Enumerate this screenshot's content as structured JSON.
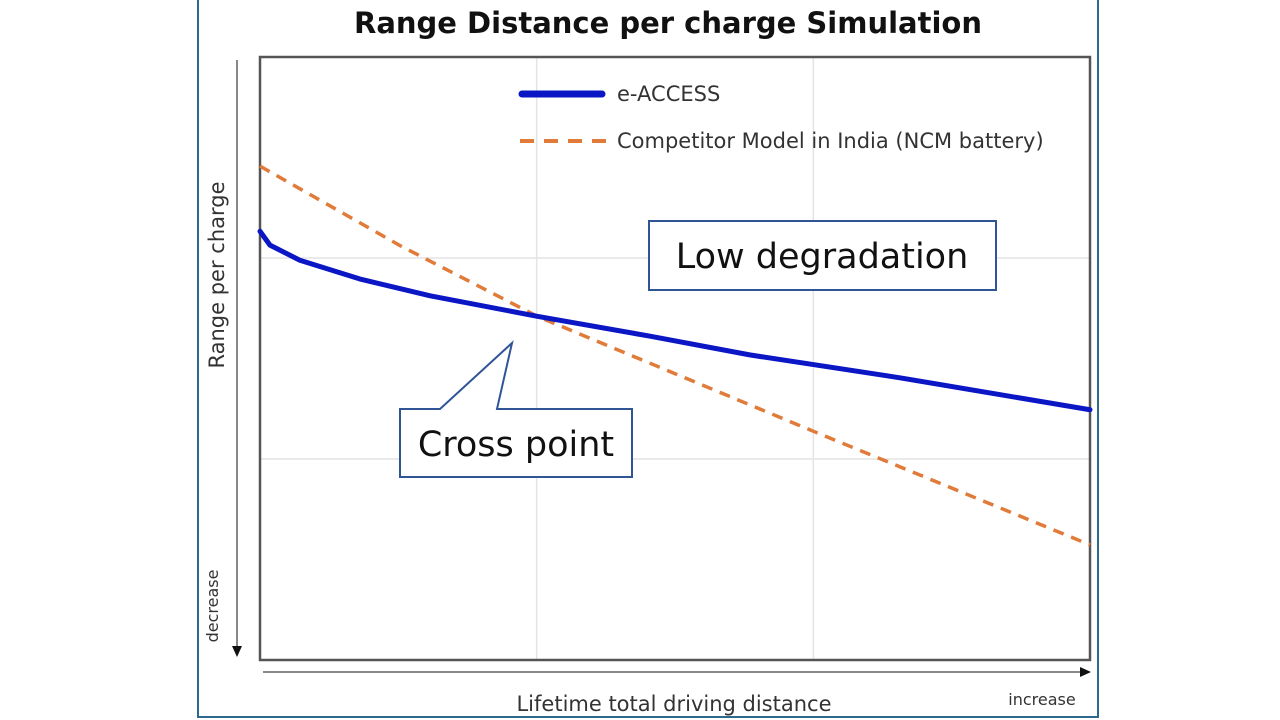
{
  "chart_data": {
    "type": "line",
    "title": "Range Distance per charge Simulation",
    "xlabel": "Lifetime total driving distance",
    "ylabel": "Range per charge",
    "x_direction_label": "increase",
    "y_direction_label": "decrease",
    "xlim": [
      0,
      100
    ],
    "ylim": [
      0,
      100
    ],
    "grid": true,
    "legend_position": "top-right",
    "series": [
      {
        "name": "e-ACCESS",
        "color": "#0b16c4",
        "style": "solid",
        "x": [
          0,
          1.2,
          4.8,
          12,
          20.5,
          33.4,
          47,
          59,
          77.1,
          100
        ],
        "y": [
          71.1,
          68.8,
          66.3,
          63.2,
          60.4,
          57.0,
          53.7,
          50.6,
          46.8,
          41.5
        ]
      },
      {
        "name": "Competitor Model in India (NCM battery)",
        "color": "#e07b39",
        "style": "dashed",
        "x": [
          0,
          16.9,
          33.4,
          66.9,
          100
        ],
        "y": [
          81.9,
          68.7,
          57.0,
          37.8,
          19.1
        ]
      }
    ],
    "annotations": [
      {
        "text": "Low degradation"
      },
      {
        "text": "Cross point"
      }
    ]
  }
}
